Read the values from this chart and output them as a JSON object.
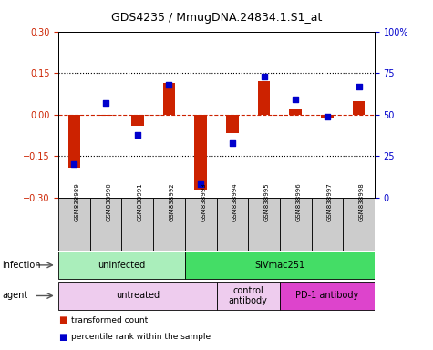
{
  "title": "GDS4235 / MmugDNA.24834.1.S1_at",
  "samples": [
    "GSM838989",
    "GSM838990",
    "GSM838991",
    "GSM838992",
    "GSM838993",
    "GSM838994",
    "GSM838995",
    "GSM838996",
    "GSM838997",
    "GSM838998"
  ],
  "transformed_count": [
    -0.19,
    -0.005,
    -0.04,
    0.115,
    -0.27,
    -0.065,
    0.12,
    0.02,
    -0.01,
    0.05
  ],
  "percentile_rank": [
    20,
    57,
    38,
    68,
    8,
    33,
    73,
    59,
    49,
    67
  ],
  "ylim_left": [
    -0.3,
    0.3
  ],
  "ylim_right": [
    0,
    100
  ],
  "yticks_left": [
    -0.3,
    -0.15,
    0,
    0.15,
    0.3
  ],
  "yticks_right": [
    0,
    25,
    50,
    75,
    100
  ],
  "bar_color": "#cc2200",
  "scatter_color": "#0000cc",
  "infection_groups": [
    {
      "label": "uninfected",
      "start": 0,
      "end": 4,
      "color": "#aaeebb"
    },
    {
      "label": "SIVmac251",
      "start": 4,
      "end": 10,
      "color": "#44dd66"
    }
  ],
  "agent_groups": [
    {
      "label": "untreated",
      "start": 0,
      "end": 5,
      "color": "#eeccee"
    },
    {
      "label": "control\nantibody",
      "start": 5,
      "end": 7,
      "color": "#eeccee"
    },
    {
      "label": "PD-1 antibody",
      "start": 7,
      "end": 10,
      "color": "#dd44cc"
    }
  ],
  "agent_colors": [
    "#eeccee",
    "#eeccee",
    "#dd44cc"
  ],
  "legend_items": [
    {
      "label": "transformed count",
      "color": "#cc2200"
    },
    {
      "label": "percentile rank within the sample",
      "color": "#0000cc"
    }
  ],
  "left_tick_color": "#cc2200",
  "right_tick_color": "#0000cc",
  "background_color": "#ffffff",
  "sample_box_color": "#cccccc",
  "title_fontsize": 9,
  "tick_fontsize": 7,
  "label_fontsize": 7,
  "bar_width": 0.4
}
